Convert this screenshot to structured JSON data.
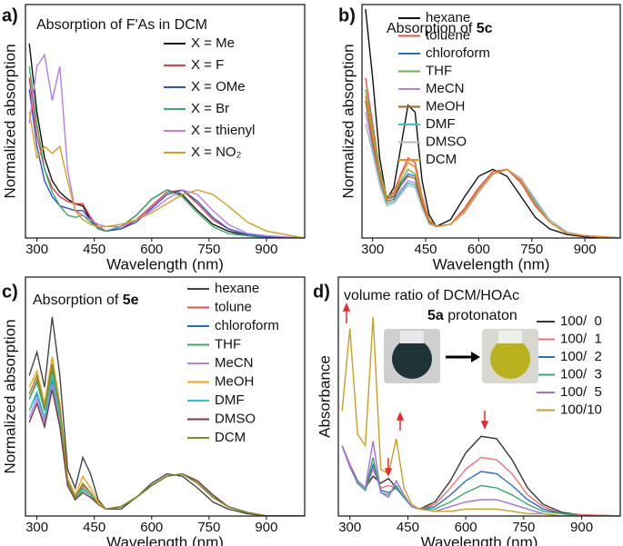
{
  "chart_data": [
    {
      "type": "line",
      "label": "a)",
      "title": "Absorption of F'As in DCM",
      "x_label": "Wavelength (nm)",
      "y_label": "Normalized absorption",
      "x": [
        280,
        300,
        320,
        340,
        360,
        380,
        400,
        420,
        440,
        460,
        480,
        520,
        560,
        600,
        640,
        680,
        720,
        760,
        800,
        850,
        900,
        1000
      ],
      "xlim": [
        270,
        1000
      ],
      "xticks": [
        300,
        450,
        600,
        750,
        900
      ],
      "ylim": [
        0,
        1.02
      ],
      "series": [
        {
          "name": "X = Me",
          "color": "#111111",
          "values": [
            0.85,
            0.55,
            0.35,
            0.25,
            0.2,
            0.17,
            0.15,
            0.14,
            0.08,
            0.04,
            0.03,
            0.05,
            0.1,
            0.17,
            0.21,
            0.19,
            0.12,
            0.06,
            0.03,
            0.01,
            0.005,
            0
          ]
        },
        {
          "name": "X = F",
          "color": "#e8383d",
          "values": [
            0.7,
            0.45,
            0.3,
            0.22,
            0.18,
            0.16,
            0.15,
            0.15,
            0.09,
            0.05,
            0.03,
            0.04,
            0.08,
            0.14,
            0.2,
            0.21,
            0.15,
            0.08,
            0.04,
            0.015,
            0.005,
            0
          ]
        },
        {
          "name": "X = OMe",
          "color": "#2a4fd0",
          "values": [
            0.65,
            0.4,
            0.25,
            0.18,
            0.14,
            0.13,
            0.12,
            0.12,
            0.08,
            0.04,
            0.03,
            0.04,
            0.07,
            0.13,
            0.19,
            0.21,
            0.16,
            0.09,
            0.04,
            0.015,
            0.005,
            0
          ]
        },
        {
          "name": "X = Br",
          "color": "#3aaa6a",
          "values": [
            0.75,
            0.5,
            0.3,
            0.2,
            0.14,
            0.1,
            0.09,
            0.1,
            0.07,
            0.04,
            0.03,
            0.05,
            0.1,
            0.17,
            0.21,
            0.18,
            0.11,
            0.05,
            0.02,
            0.01,
            0,
            0
          ]
        },
        {
          "name": "X = thienyl",
          "color": "#b57ee8",
          "values": [
            0.5,
            0.75,
            0.8,
            0.6,
            0.75,
            0.3,
            0.12,
            0.1,
            0.08,
            0.06,
            0.05,
            0.05,
            0.08,
            0.12,
            0.17,
            0.21,
            0.19,
            0.12,
            0.06,
            0.02,
            0.01,
            0
          ]
        },
        {
          "name": "X = NO₂",
          "color": "#d4a020",
          "values": [
            0.55,
            0.35,
            0.4,
            0.37,
            0.4,
            0.25,
            0.12,
            0.08,
            0.06,
            0.05,
            0.05,
            0.06,
            0.08,
            0.11,
            0.15,
            0.19,
            0.21,
            0.19,
            0.14,
            0.07,
            0.03,
            0
          ]
        }
      ]
    },
    {
      "type": "line",
      "label": "b)",
      "title": "Absorption of",
      "title_bold": "5c",
      "x_label": "Wavelength (nm)",
      "y_label": "Normalized absorption",
      "x": [
        280,
        300,
        320,
        340,
        360,
        380,
        400,
        420,
        440,
        460,
        480,
        520,
        560,
        600,
        640,
        680,
        720,
        760,
        800,
        850,
        900,
        1000
      ],
      "xlim": [
        270,
        1000
      ],
      "xticks": [
        300,
        450,
        600,
        750,
        900
      ],
      "ylim": [
        0,
        1.02
      ],
      "series": [
        {
          "name": "hexane",
          "color": "#111111",
          "values": [
            1,
            0.7,
            0.35,
            0.17,
            0.22,
            0.4,
            0.58,
            0.55,
            0.25,
            0.1,
            0.05,
            0.08,
            0.18,
            0.27,
            0.3,
            0.27,
            0.18,
            0.09,
            0.04,
            0.015,
            0.005,
            0
          ]
        },
        {
          "name": "toluene",
          "color": "#e8504a",
          "values": [
            0.7,
            0.5,
            0.3,
            0.18,
            0.2,
            0.28,
            0.35,
            0.33,
            0.18,
            0.08,
            0.05,
            0.06,
            0.13,
            0.22,
            0.29,
            0.3,
            0.24,
            0.14,
            0.07,
            0.02,
            0.01,
            0
          ]
        },
        {
          "name": "chloroform",
          "color": "#1f6fd0",
          "values": [
            0.6,
            0.45,
            0.28,
            0.17,
            0.18,
            0.24,
            0.28,
            0.27,
            0.15,
            0.07,
            0.05,
            0.06,
            0.12,
            0.21,
            0.28,
            0.3,
            0.25,
            0.15,
            0.07,
            0.02,
            0.01,
            0
          ]
        },
        {
          "name": "THF",
          "color": "#6ab34a",
          "values": [
            0.65,
            0.48,
            0.3,
            0.18,
            0.19,
            0.25,
            0.3,
            0.28,
            0.16,
            0.07,
            0.05,
            0.06,
            0.12,
            0.21,
            0.28,
            0.3,
            0.25,
            0.15,
            0.07,
            0.02,
            0.01,
            0
          ]
        },
        {
          "name": "MeCN",
          "color": "#b57ee8",
          "values": [
            0.55,
            0.4,
            0.25,
            0.15,
            0.16,
            0.21,
            0.25,
            0.24,
            0.14,
            0.07,
            0.05,
            0.06,
            0.11,
            0.2,
            0.28,
            0.3,
            0.26,
            0.16,
            0.08,
            0.025,
            0.01,
            0
          ]
        },
        {
          "name": "MeOH",
          "color": "#a0641e",
          "values": [
            0.6,
            0.42,
            0.27,
            0.16,
            0.17,
            0.23,
            0.27,
            0.26,
            0.15,
            0.07,
            0.05,
            0.06,
            0.11,
            0.2,
            0.28,
            0.3,
            0.26,
            0.16,
            0.08,
            0.025,
            0.01,
            0
          ]
        },
        {
          "name": "DMF",
          "color": "#2ec7c7",
          "values": [
            0.5,
            0.38,
            0.24,
            0.15,
            0.16,
            0.2,
            0.24,
            0.23,
            0.13,
            0.06,
            0.05,
            0.06,
            0.11,
            0.2,
            0.28,
            0.3,
            0.26,
            0.16,
            0.08,
            0.025,
            0.01,
            0
          ]
        },
        {
          "name": "DMSO",
          "color": "#bbbbbb",
          "values": [
            0.5,
            0.37,
            0.23,
            0.14,
            0.15,
            0.19,
            0.23,
            0.22,
            0.13,
            0.06,
            0.05,
            0.06,
            0.11,
            0.2,
            0.28,
            0.3,
            0.26,
            0.17,
            0.08,
            0.025,
            0.01,
            0
          ]
        },
        {
          "name": "DCM",
          "color": "#f08a1e",
          "values": [
            0.62,
            0.45,
            0.28,
            0.17,
            0.19,
            0.27,
            0.33,
            0.31,
            0.17,
            0.08,
            0.05,
            0.06,
            0.12,
            0.21,
            0.28,
            0.3,
            0.25,
            0.15,
            0.07,
            0.02,
            0.01,
            0
          ]
        }
      ]
    },
    {
      "type": "line",
      "label": "c)",
      "title": "Absorption of",
      "title_bold": "5e",
      "x_label": "Wavelength (nm)",
      "y_label": "Normalized absorption",
      "x": [
        280,
        300,
        320,
        340,
        360,
        380,
        400,
        420,
        440,
        460,
        480,
        520,
        560,
        600,
        640,
        680,
        720,
        760,
        800,
        850,
        900,
        1000
      ],
      "xlim": [
        270,
        1000
      ],
      "xticks": [
        300,
        450,
        600,
        750,
        900
      ],
      "ylim": [
        0,
        1.02
      ],
      "series": [
        {
          "name": "hexane",
          "color": "#444444",
          "values": [
            0.6,
            0.7,
            0.55,
            0.85,
            0.6,
            0.2,
            0.12,
            0.25,
            0.18,
            0.07,
            0.03,
            0.03,
            0.08,
            0.14,
            0.18,
            0.17,
            0.12,
            0.06,
            0.03,
            0.01,
            0,
            0
          ]
        },
        {
          "name": "tolune",
          "color": "#e8504a",
          "values": [
            0.5,
            0.58,
            0.45,
            0.62,
            0.45,
            0.15,
            0.08,
            0.13,
            0.1,
            0.05,
            0.03,
            0.04,
            0.08,
            0.13,
            0.17,
            0.18,
            0.14,
            0.08,
            0.04,
            0.015,
            0,
            0
          ]
        },
        {
          "name": "chloroform",
          "color": "#1f6fd0",
          "values": [
            0.45,
            0.52,
            0.42,
            0.58,
            0.42,
            0.14,
            0.07,
            0.11,
            0.09,
            0.05,
            0.03,
            0.04,
            0.08,
            0.13,
            0.17,
            0.18,
            0.14,
            0.08,
            0.04,
            0.015,
            0,
            0
          ]
        },
        {
          "name": "THF",
          "color": "#3aaa6a",
          "values": [
            0.5,
            0.57,
            0.45,
            0.63,
            0.45,
            0.15,
            0.08,
            0.12,
            0.09,
            0.05,
            0.03,
            0.04,
            0.08,
            0.13,
            0.17,
            0.18,
            0.14,
            0.08,
            0.04,
            0.015,
            0,
            0
          ]
        },
        {
          "name": "MeCN",
          "color": "#b57ee8",
          "values": [
            0.42,
            0.5,
            0.4,
            0.56,
            0.4,
            0.13,
            0.07,
            0.1,
            0.08,
            0.05,
            0.03,
            0.04,
            0.08,
            0.13,
            0.17,
            0.18,
            0.15,
            0.09,
            0.04,
            0.015,
            0,
            0
          ]
        },
        {
          "name": "MeOH",
          "color": "#f0a020",
          "values": [
            0.55,
            0.62,
            0.48,
            0.68,
            0.48,
            0.16,
            0.09,
            0.17,
            0.12,
            0.06,
            0.03,
            0.04,
            0.08,
            0.13,
            0.17,
            0.18,
            0.14,
            0.08,
            0.04,
            0.015,
            0,
            0
          ]
        },
        {
          "name": "DMF",
          "color": "#2ec7c7",
          "values": [
            0.45,
            0.53,
            0.42,
            0.6,
            0.42,
            0.14,
            0.07,
            0.11,
            0.09,
            0.05,
            0.03,
            0.04,
            0.08,
            0.13,
            0.17,
            0.18,
            0.15,
            0.09,
            0.04,
            0.015,
            0,
            0
          ]
        },
        {
          "name": "DMSO",
          "color": "#7b3b3b",
          "values": [
            0.4,
            0.48,
            0.38,
            0.54,
            0.38,
            0.13,
            0.07,
            0.1,
            0.08,
            0.05,
            0.03,
            0.04,
            0.08,
            0.13,
            0.17,
            0.18,
            0.15,
            0.09,
            0.04,
            0.015,
            0,
            0
          ]
        },
        {
          "name": "DCM",
          "color": "#8a8a1e",
          "values": [
            0.52,
            0.6,
            0.46,
            0.65,
            0.46,
            0.15,
            0.08,
            0.14,
            0.1,
            0.05,
            0.03,
            0.04,
            0.08,
            0.13,
            0.17,
            0.18,
            0.14,
            0.08,
            0.04,
            0.015,
            0,
            0
          ]
        }
      ]
    },
    {
      "type": "line",
      "label": "d)",
      "title": "volume ratio of DCM/HOAc",
      "subtitle_bold": "5a",
      "subtitle": "protonaton",
      "x_label": "Wavelength (nm)",
      "y_label": "Absorbance",
      "x": [
        280,
        300,
        320,
        340,
        360,
        380,
        400,
        420,
        440,
        460,
        480,
        520,
        560,
        600,
        640,
        680,
        720,
        760,
        800,
        850,
        900,
        1000
      ],
      "xlim": [
        270,
        1000
      ],
      "xticks": [
        300,
        450,
        600,
        750,
        900
      ],
      "ylim": [
        0,
        1.02
      ],
      "series": [
        {
          "name": "100/  0",
          "color": "#333333",
          "values": [
            0.3,
            0.22,
            0.15,
            0.12,
            0.17,
            0.14,
            0.16,
            0.12,
            0.08,
            0.04,
            0.03,
            0.06,
            0.15,
            0.27,
            0.34,
            0.33,
            0.24,
            0.12,
            0.05,
            0.015,
            0.005,
            0
          ]
        },
        {
          "name": "100/  1",
          "color": "#f07070",
          "values": [
            0.3,
            0.22,
            0.14,
            0.11,
            0.2,
            0.12,
            0.13,
            0.12,
            0.08,
            0.04,
            0.03,
            0.05,
            0.12,
            0.2,
            0.25,
            0.24,
            0.18,
            0.09,
            0.04,
            0.01,
            0.005,
            0
          ]
        },
        {
          "name": "100/  2",
          "color": "#2a6fd0",
          "values": [
            0.3,
            0.21,
            0.14,
            0.11,
            0.22,
            0.11,
            0.1,
            0.12,
            0.08,
            0.04,
            0.03,
            0.04,
            0.09,
            0.15,
            0.19,
            0.18,
            0.13,
            0.07,
            0.03,
            0.01,
            0,
            0
          ]
        },
        {
          "name": "100/  3",
          "color": "#3aaa6a",
          "values": [
            0.3,
            0.21,
            0.14,
            0.11,
            0.25,
            0.1,
            0.09,
            0.13,
            0.08,
            0.04,
            0.03,
            0.03,
            0.06,
            0.1,
            0.13,
            0.12,
            0.09,
            0.05,
            0.02,
            0.01,
            0,
            0
          ]
        },
        {
          "name": "100/  5",
          "color": "#a070e0",
          "values": [
            0.3,
            0.21,
            0.15,
            0.12,
            0.32,
            0.1,
            0.08,
            0.15,
            0.09,
            0.04,
            0.03,
            0.02,
            0.04,
            0.06,
            0.07,
            0.07,
            0.05,
            0.03,
            0.01,
            0,
            0,
            0
          ]
        },
        {
          "name": "100/10",
          "color": "#c8a020",
          "values": [
            0.45,
            0.8,
            0.35,
            0.3,
            0.85,
            0.2,
            0.18,
            0.33,
            0.12,
            0.05,
            0.03,
            0.02,
            0.02,
            0.03,
            0.03,
            0.03,
            0.02,
            0.01,
            0.01,
            0,
            0,
            0
          ]
        }
      ]
    }
  ]
}
